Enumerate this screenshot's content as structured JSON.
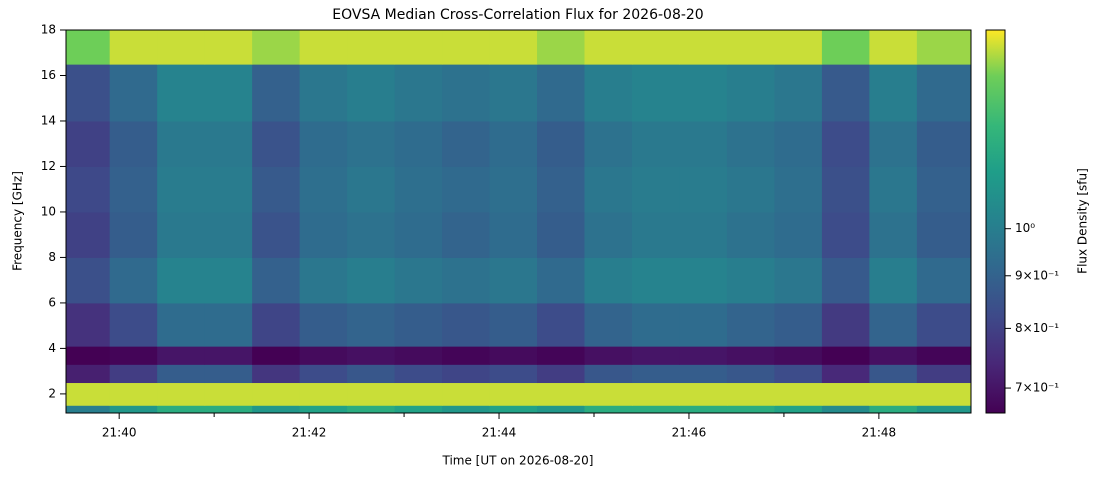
{
  "chart_data": {
    "type": "heatmap",
    "title": "EOVSA Median Cross-Correlation Flux for 2026-08-20",
    "x_label": "Time [UT on 2026-08-20]",
    "y_label": "Frequency [GHz]",
    "colorbar_label": "Flux Density [sfu]",
    "xlim": [
      39.44,
      48.97
    ],
    "xticks": [
      {
        "value": 40,
        "label": "21:40"
      },
      {
        "value": 42,
        "label": "21:42"
      },
      {
        "value": 44,
        "label": "21:44"
      },
      {
        "value": 46,
        "label": "21:46"
      },
      {
        "value": 48,
        "label": "21:48"
      }
    ],
    "x_minor_ticks": [
      41,
      43,
      45,
      47
    ],
    "ylim": [
      1.16,
      18.0
    ],
    "yticks": [
      2,
      4,
      6,
      8,
      10,
      12,
      14,
      16,
      18
    ],
    "clim": [
      0.662,
      1.56
    ],
    "color_scale": "log",
    "colormap": "viridis",
    "cticks": [
      {
        "value": 1.0,
        "label": "10⁰"
      },
      {
        "value": 0.9,
        "label": "9×10⁻¹"
      },
      {
        "value": 0.8,
        "label": "8×10⁻¹"
      },
      {
        "value": 0.7,
        "label": "7×10⁻¹"
      }
    ],
    "x_edges": [
      39.44,
      39.9,
      40.4,
      40.9,
      41.4,
      41.9,
      42.4,
      42.9,
      43.4,
      43.9,
      44.4,
      44.9,
      45.4,
      45.9,
      46.4,
      46.9,
      47.4,
      47.9,
      48.4,
      48.97
    ],
    "y_edges": [
      1.16,
      1.5,
      2.5,
      3.3,
      4.1,
      6,
      8,
      10,
      12,
      14,
      16.5,
      18
    ],
    "z": [
      [
        1.0,
        1.1,
        1.2,
        1.2,
        1.1,
        1.15,
        1.2,
        1.15,
        1.1,
        1.15,
        1.1,
        1.2,
        1.2,
        1.2,
        1.2,
        1.15,
        1.05,
        1.2,
        1.1
      ],
      [
        1.5,
        1.5,
        1.5,
        1.5,
        1.5,
        1.5,
        1.5,
        1.5,
        1.5,
        1.5,
        1.5,
        1.5,
        1.5,
        1.5,
        1.5,
        1.5,
        1.5,
        1.5,
        1.5
      ],
      [
        0.72,
        0.79,
        0.88,
        0.88,
        0.77,
        0.83,
        0.86,
        0.83,
        0.81,
        0.83,
        0.79,
        0.86,
        0.88,
        0.88,
        0.86,
        0.83,
        0.74,
        0.86,
        0.79
      ],
      [
        0.66,
        0.67,
        0.7,
        0.7,
        0.66,
        0.68,
        0.69,
        0.68,
        0.67,
        0.68,
        0.67,
        0.69,
        0.7,
        0.7,
        0.69,
        0.68,
        0.66,
        0.69,
        0.67
      ],
      [
        0.76,
        0.83,
        0.93,
        0.93,
        0.81,
        0.88,
        0.9,
        0.88,
        0.86,
        0.88,
        0.83,
        0.9,
        0.93,
        0.93,
        0.9,
        0.88,
        0.78,
        0.9,
        0.83
      ],
      [
        0.84,
        0.92,
        1.02,
        1.02,
        0.89,
        0.97,
        1.0,
        0.97,
        0.95,
        0.97,
        0.92,
        1.0,
        1.02,
        1.02,
        1.0,
        0.97,
        0.87,
        1.0,
        0.92
      ],
      [
        0.8,
        0.88,
        0.98,
        0.98,
        0.85,
        0.93,
        0.95,
        0.93,
        0.9,
        0.93,
        0.88,
        0.95,
        0.98,
        0.98,
        0.95,
        0.93,
        0.83,
        0.95,
        0.88
      ],
      [
        0.82,
        0.89,
        0.99,
        0.99,
        0.87,
        0.94,
        0.97,
        0.94,
        0.92,
        0.94,
        0.89,
        0.97,
        0.99,
        0.99,
        0.97,
        0.94,
        0.84,
        0.97,
        0.89
      ],
      [
        0.8,
        0.88,
        0.98,
        0.98,
        0.85,
        0.93,
        0.95,
        0.93,
        0.9,
        0.93,
        0.88,
        0.95,
        0.98,
        0.98,
        0.95,
        0.93,
        0.83,
        0.95,
        0.88
      ],
      [
        0.84,
        0.92,
        1.02,
        1.02,
        0.89,
        0.97,
        1.0,
        0.97,
        0.95,
        0.97,
        0.92,
        1.0,
        1.02,
        1.02,
        1.0,
        0.97,
        0.87,
        1.0,
        0.92
      ],
      [
        1.4,
        1.5,
        1.5,
        1.5,
        1.45,
        1.5,
        1.5,
        1.5,
        1.5,
        1.5,
        1.45,
        1.5,
        1.5,
        1.5,
        1.5,
        1.5,
        1.4,
        1.5,
        1.45
      ]
    ]
  }
}
